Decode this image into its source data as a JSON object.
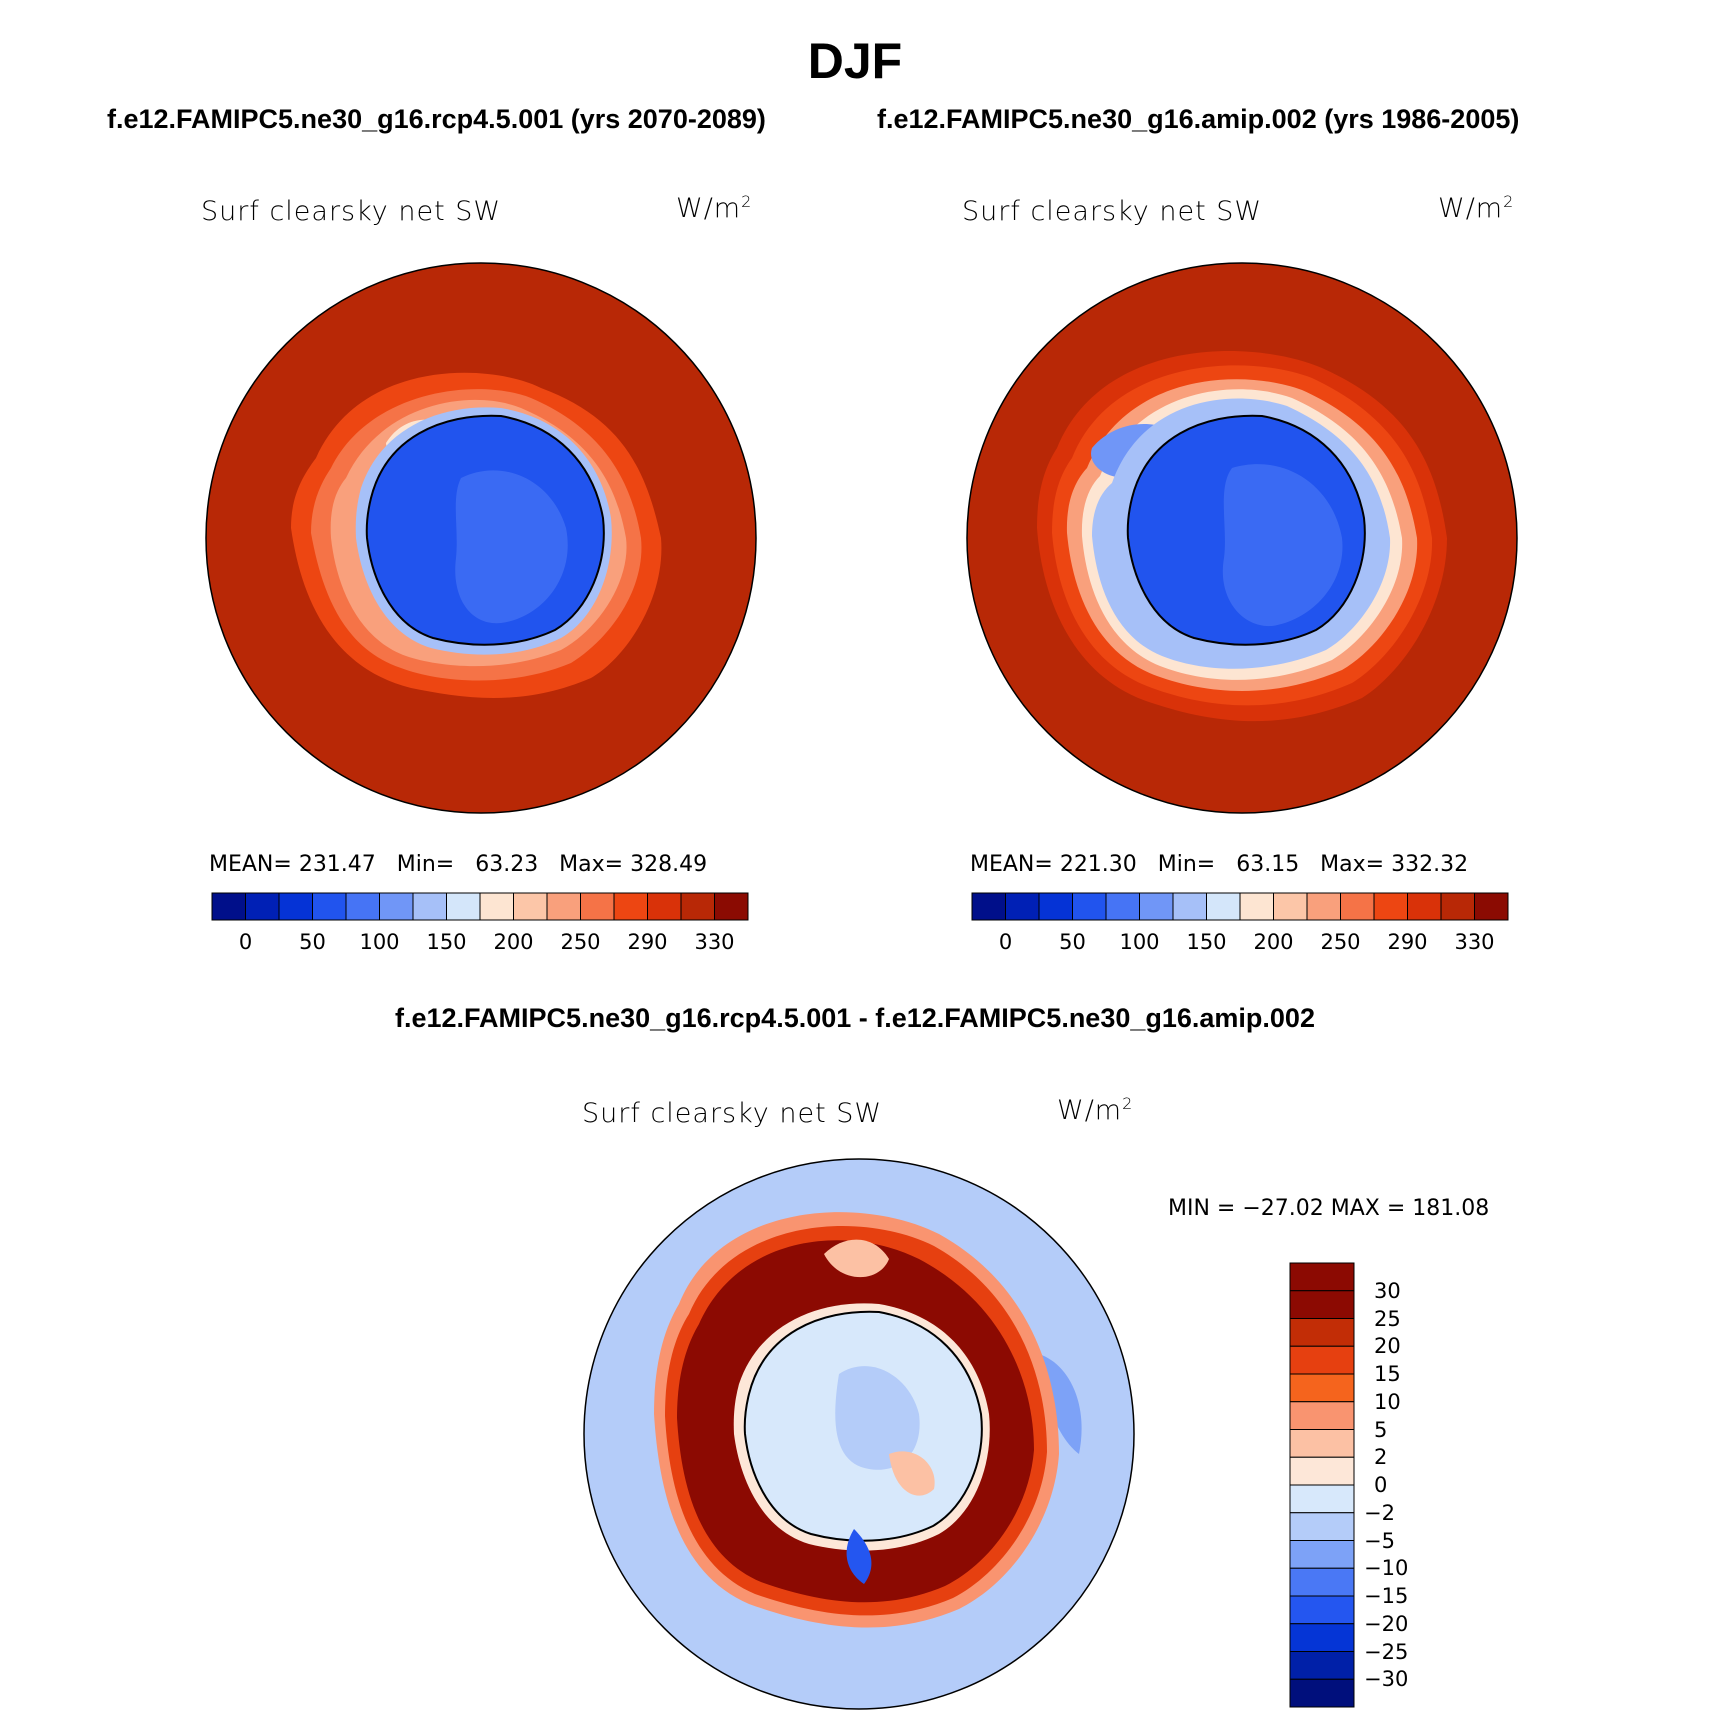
{
  "header": {
    "title": "DJF",
    "left_case": "f.e12.FAMIPC5.ne30_g16.rcp4.5.001 (yrs 2070-2089)",
    "right_case": "f.e12.FAMIPC5.ne30_g16.amip.002 (yrs 1986-2005)",
    "diff_title": "f.e12.FAMIPC5.ne30_g16.rcp4.5.001 - f.e12.FAMIPC5.ne30_g16.amip.002"
  },
  "panels": {
    "p1": {
      "variable": "Surf clearsky net SW",
      "units": "W/m",
      "units_sup": "2",
      "stats": "MEAN= 231.47   Min=   63.23   Max= 328.49"
    },
    "p2": {
      "variable": "Surf clearsky net SW",
      "units": "W/m",
      "units_sup": "2",
      "stats": "MEAN= 221.30   Min=   63.15   Max= 332.32"
    },
    "p3": {
      "variable": "Surf clearsky net SW",
      "units": "W/m",
      "units_sup": "2",
      "stats": "MIN = −27.02 MAX = 181.08"
    }
  },
  "colors": {
    "abs_scale": [
      "#000f8a",
      "#0020b5",
      "#0533d6",
      "#2154ee",
      "#4674f5",
      "#7096f7",
      "#a6c0f8",
      "#d4e6fa",
      "#fde5d2",
      "#fcc6a8",
      "#f9a07c",
      "#f57347",
      "#ed4612",
      "#d93209",
      "#b82806",
      "#8b0b02"
    ],
    "diff_scale": [
      "#000f7c",
      "#0020a8",
      "#0535d6",
      "#2456f0",
      "#4a78f5",
      "#7da2f7",
      "#b4ccf9",
      "#d7e8fb",
      "#fde7d8",
      "#fcc1a4",
      "#f99470",
      "#f5641d",
      "#e64010",
      "#c22d06",
      "#8c0a02"
    ]
  },
  "chart_data": [
    {
      "type": "heatmap",
      "title": "Surf clearsky net SW",
      "units": "W/m2",
      "projection": "south polar stereographic",
      "case": "f.e12.FAMIPC5.ne30_g16.rcp4.5.001 (yrs 2070-2089)",
      "mean": 231.47,
      "min": 63.23,
      "max": 328.49,
      "contour_levels": [
        0,
        50,
        100,
        150,
        200,
        250,
        290,
        330
      ],
      "colorbar_ticks": [
        "0",
        "50",
        "100",
        "150",
        "200",
        "250",
        "290",
        "330"
      ]
    },
    {
      "type": "heatmap",
      "title": "Surf clearsky net SW",
      "units": "W/m2",
      "projection": "south polar stereographic",
      "case": "f.e12.FAMIPC5.ne30_g16.amip.002 (yrs 1986-2005)",
      "mean": 221.3,
      "min": 63.15,
      "max": 332.32,
      "contour_levels": [
        0,
        50,
        100,
        150,
        200,
        250,
        290,
        330
      ],
      "colorbar_ticks": [
        "0",
        "50",
        "100",
        "150",
        "200",
        "250",
        "290",
        "330"
      ]
    },
    {
      "type": "heatmap",
      "title": "Surf clearsky net SW",
      "units": "W/m2",
      "projection": "south polar stereographic",
      "case": "f.e12.FAMIPC5.ne30_g16.rcp4.5.001 - f.e12.FAMIPC5.ne30_g16.amip.002",
      "min": -27.02,
      "max": 181.08,
      "contour_levels": [
        -30,
        -25,
        -20,
        -15,
        -10,
        -5,
        -2,
        0,
        2,
        5,
        10,
        15,
        20,
        25,
        30
      ],
      "colorbar_ticks": [
        "30",
        "25",
        "20",
        "15",
        "10",
        "5",
        "2",
        "0",
        "−2",
        "−5",
        "−10",
        "−15",
        "−20",
        "−25",
        "−30"
      ]
    }
  ]
}
